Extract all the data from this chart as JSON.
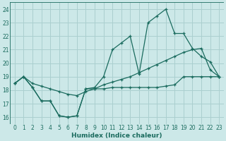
{
  "xlabel": "Humidex (Indice chaleur)",
  "bg_color": "#cce8e8",
  "grid_color": "#aacfcf",
  "line_color": "#1a6b5e",
  "xlim": [
    -0.5,
    23.5
  ],
  "ylim": [
    15.5,
    24.5
  ],
  "xticks": [
    0,
    1,
    2,
    3,
    4,
    5,
    6,
    7,
    8,
    9,
    10,
    11,
    12,
    13,
    14,
    15,
    16,
    17,
    18,
    19,
    20,
    21,
    22,
    23
  ],
  "yticks": [
    16,
    17,
    18,
    19,
    20,
    21,
    22,
    23,
    24
  ],
  "line1_x": [
    0,
    1,
    2,
    3,
    4,
    5,
    6,
    7,
    8,
    9,
    10,
    11,
    12,
    13,
    14,
    15,
    16,
    17,
    18,
    19,
    20,
    21,
    22,
    23
  ],
  "line1_y": [
    18.5,
    19.0,
    18.2,
    17.2,
    17.2,
    16.1,
    16.0,
    16.1,
    18.1,
    18.1,
    18.1,
    18.2,
    18.2,
    18.2,
    18.2,
    18.2,
    18.2,
    18.3,
    18.4,
    19.0,
    19.0,
    19.0,
    19.0,
    19.0
  ],
  "line2_x": [
    0,
    1,
    2,
    3,
    4,
    5,
    6,
    7,
    8,
    9,
    10,
    11,
    12,
    13,
    14,
    15,
    16,
    17,
    18,
    19,
    20,
    21,
    22,
    23
  ],
  "line2_y": [
    18.5,
    19.0,
    18.2,
    17.2,
    17.2,
    16.1,
    16.0,
    16.1,
    18.1,
    18.2,
    19.0,
    21.0,
    21.5,
    22.0,
    19.2,
    23.0,
    23.5,
    24.0,
    22.2,
    22.2,
    21.1,
    20.5,
    20.1,
    19.0
  ],
  "line3_x": [
    0,
    1,
    2,
    3,
    4,
    5,
    6,
    7,
    8,
    9,
    10,
    11,
    12,
    13,
    14,
    15,
    16,
    17,
    18,
    19,
    20,
    21,
    22,
    23
  ],
  "line3_y": [
    18.5,
    19.0,
    18.5,
    18.3,
    18.1,
    17.9,
    17.7,
    17.6,
    17.9,
    18.1,
    18.4,
    18.6,
    18.8,
    19.0,
    19.3,
    19.6,
    19.9,
    20.2,
    20.5,
    20.8,
    21.0,
    21.1,
    19.5,
    19.0
  ],
  "marker_lines": [
    1,
    2
  ],
  "figsize": [
    3.2,
    2.0
  ],
  "dpi": 100
}
